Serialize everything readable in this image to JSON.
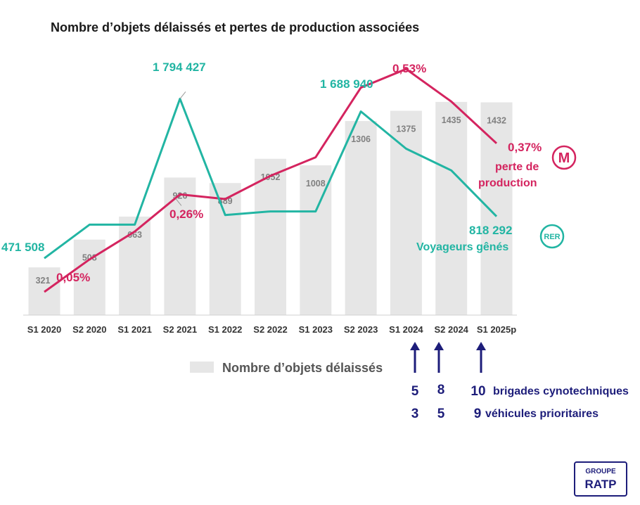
{
  "chart_data": {
    "type": "bar",
    "title": "Nombre d’objets délaissés et pertes de production associées",
    "categories": [
      "S1 2020",
      "S2 2020",
      "S1 2021",
      "S2 2021",
      "S1 2022",
      "S2 2022",
      "S1 2023",
      "S2 2023",
      "S1 2024",
      "S2 2024",
      "S1 2025p"
    ],
    "series": [
      {
        "name": "Nombre d’objets délaissés",
        "kind": "bar",
        "color": "#e6e6e6",
        "values": [
          321,
          508,
          663,
          926,
          889,
          1052,
          1008,
          1306,
          1375,
          1435,
          1432
        ],
        "labels": [
          "321",
          "508",
          "663",
          "926",
          "889",
          "1052",
          "1008",
          "1306",
          "1375",
          "1435",
          "1432"
        ]
      },
      {
        "name": "Voyageurs gênés",
        "kind": "line",
        "network": "RER",
        "color": "#22b5a3",
        "values": [
          471508,
          750000,
          750000,
          1794427,
          830000,
          860000,
          860000,
          1688940,
          1380000,
          1200000,
          818292
        ],
        "labels": {
          "first": "471 508",
          "peak1": "1 794 427",
          "peak2": "1 688 940",
          "last": "818 292"
        }
      },
      {
        "name": "perte de production",
        "kind": "line",
        "network": "M",
        "color": "#d4245f",
        "values": [
          0.05,
          0.12,
          0.18,
          0.26,
          0.25,
          0.3,
          0.34,
          0.49,
          0.53,
          0.46,
          0.37
        ],
        "labels": {
          "first": "0,05%",
          "mid": "0,26%",
          "peak": "0,53%",
          "last": "0,37%"
        }
      }
    ],
    "bar_ylim": [
      0,
      1600
    ],
    "legend": "Nombre d’objets délaissés",
    "annotations": {
      "voyageurs_label": "Voyageurs gênés",
      "perte_label_1": "perte de",
      "perte_label_2": "production",
      "rer_badge": "RER",
      "metro_badge": "M",
      "reinforcements": [
        {
          "category": "S1 2024",
          "brigades": "5",
          "vehicules": "3"
        },
        {
          "category": "S2 2024",
          "brigades": "8",
          "vehicules": "5"
        },
        {
          "category": "S1 2025p",
          "brigades": "10",
          "vehicules": "9"
        }
      ],
      "brigades_text": "brigades cynotechniques",
      "vehicules_text": "véhicules prioritaires"
    }
  },
  "logo": {
    "line1": "GROUPE",
    "line2": "RATP"
  }
}
